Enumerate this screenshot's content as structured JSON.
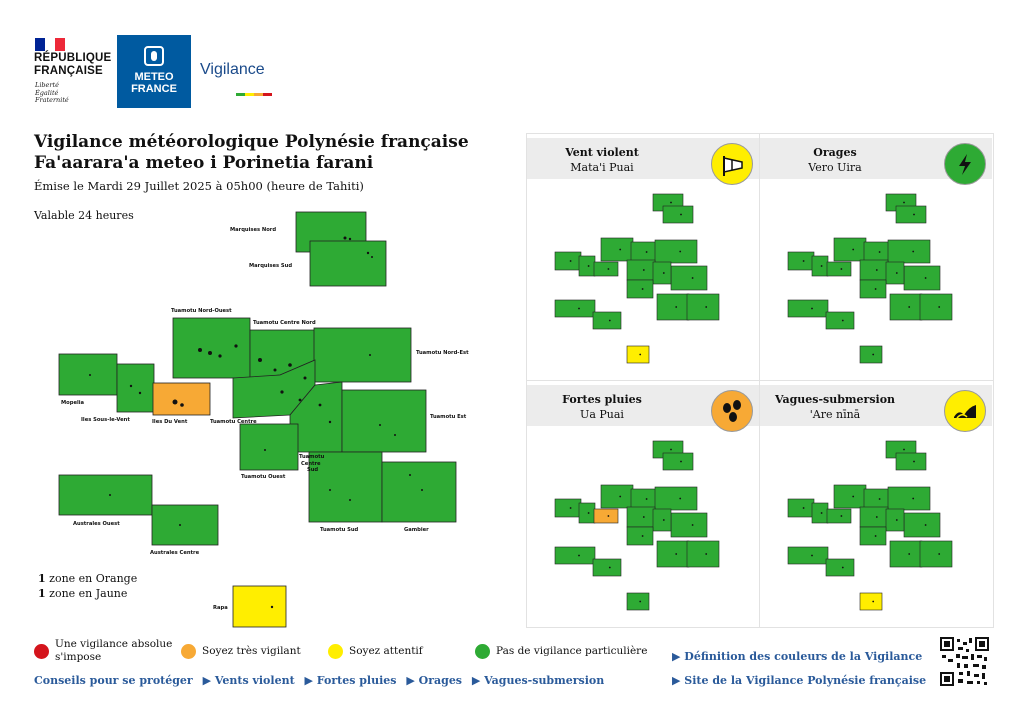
{
  "header": {
    "republique": "RÉPUBLIQUE\nFRANÇAISE",
    "republique_line1": "RÉPUBLIQUE",
    "republique_line2": "FRANÇAISE",
    "motto1": "Liberté",
    "motto2": "Égalité",
    "motto3": "Fraternité",
    "meteo1": "METEO",
    "meteo2": "FRANCE",
    "vigilance_logo": "Vigilance"
  },
  "title": {
    "line1": "Vigilance météorologique Polynésie française",
    "line2": "Fa'aarara'a meteo i Porinetia farani",
    "issued": "Émise le Mardi 29 Juillet 2025 à 05h00 (heure de Tahiti)",
    "valid": "Valable 24 heures"
  },
  "zones": {
    "marquises_nord": "Marquises Nord",
    "marquises_sud": "Marquises Sud",
    "tuamotu_nord_ouest": "Tuamotu Nord-Ouest",
    "tuamotu_centre_nord": "Tuamotu Centre Nord",
    "tuamotu_nord_est": "Tuamotu Nord-Est",
    "mopelia": "Mopelia",
    "iles_sous_le_vent": "Iles Sous-le-Vent",
    "iles_du_vent": "Iles Du Vent",
    "tuamotu_centre": "Tuamotu Centre",
    "tuamotu_est": "Tuamotu Est",
    "tuamotu_centre_sud_1": "Tuamotu",
    "tuamotu_centre_sud_2": "Centre",
    "tuamotu_centre_sud_3": "Sud",
    "tuamotu_ouest": "Tuamotu Ouest",
    "australes_ouest": "Australes Ouest",
    "australes_centre": "Australes Centre",
    "tuamotu_sud": "Tuamotu Sud",
    "gambier": "Gambier",
    "rapa": "Rapa"
  },
  "counts": {
    "orange_num": "1",
    "orange_text": " zone en Orange",
    "yellow_num": "1",
    "yellow_text": " zone en Jaune"
  },
  "panels": [
    {
      "title": "Vent violent",
      "subtitle": "Mata'i Puai",
      "icon": "wind-icon",
      "color": "#ffee00"
    },
    {
      "title": "Orages",
      "subtitle": "Vero Uira",
      "icon": "lightning-icon",
      "color": "#2eaa34"
    },
    {
      "title": "Fortes pluies",
      "subtitle": "Ua Puai",
      "icon": "rain-icon",
      "color": "#f7a935"
    },
    {
      "title": "Vagues-submersion",
      "subtitle": "'Are nīnā",
      "icon": "waves-icon",
      "color": "#ffee00"
    }
  ],
  "legend": {
    "red": "Une vigilance absolue s'impose",
    "red_line1": "Une vigilance absolue",
    "red_line2": "s'impose",
    "orange": "Soyez très vigilant",
    "yellow": "Soyez attentif",
    "green": "Pas de vigilance particulière"
  },
  "links": {
    "conseils": "Conseils pour se protéger",
    "vents": "▶ Vents violent",
    "pluies": "▶ Fortes pluies",
    "orages": "▶ Orages",
    "vagues": "▶ Vagues-submersion",
    "definition": "▶ Définition des couleurs de la Vigilance",
    "site": "▶ Site de la Vigilance Polynésie française"
  },
  "colors": {
    "green": "#2eaa34",
    "orange": "#f7a935",
    "yellow": "#ffee00",
    "red": "#d4141c",
    "link": "#2a5a9a"
  }
}
